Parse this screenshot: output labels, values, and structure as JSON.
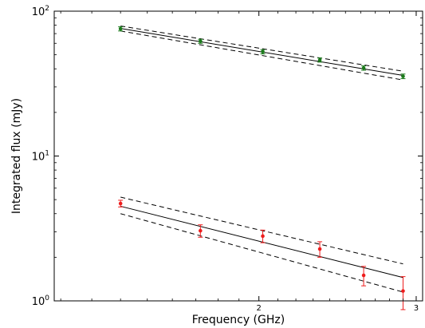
{
  "chart_data": {
    "type": "scatter",
    "title": "",
    "xlabel": "Frequency (GHz)",
    "ylabel": "Integrated flux (mJy)",
    "xscale": "log",
    "yscale": "log",
    "xlim": [
      1.18,
      3.05
    ],
    "ylim": [
      1,
      100
    ],
    "x_ticks": [
      {
        "value": 2,
        "label": "2"
      },
      {
        "value": 3,
        "label": "3"
      }
    ],
    "y_ticks": [
      {
        "value": 1,
        "base": "10",
        "exp": "0"
      },
      {
        "value": 10,
        "base": "10",
        "exp": "1"
      },
      {
        "value": 100,
        "base": "10",
        "exp": "2"
      }
    ],
    "grid": false,
    "series": [
      {
        "color": "#1a7a1a",
        "x": [
          1.4,
          1.72,
          2.02,
          2.34,
          2.62,
          2.9
        ],
        "y": [
          75.5,
          62.0,
          52.5,
          46.0,
          40.5,
          35.5
        ],
        "err": [
          2.5,
          2.0,
          1.8,
          1.5,
          1.4,
          1.3
        ],
        "fit": {
          "x": [
            1.4,
            2.9
          ],
          "y": [
            76.0,
            36.0
          ]
        },
        "fit_upper": {
          "x": [
            1.4,
            2.9
          ],
          "y": [
            79.0,
            38.5
          ]
        },
        "fit_lower": {
          "x": [
            1.4,
            2.9
          ],
          "y": [
            73.0,
            33.5
          ]
        }
      },
      {
        "color": "#ee1c1c",
        "x": [
          1.4,
          1.72,
          2.02,
          2.34,
          2.62,
          2.9
        ],
        "y": [
          4.7,
          3.05,
          2.8,
          2.28,
          1.5,
          1.17
        ],
        "err": [
          0.25,
          0.3,
          0.28,
          0.28,
          0.23,
          0.3
        ],
        "fit": {
          "x": [
            1.4,
            2.9
          ],
          "y": [
            4.5,
            1.45
          ]
        },
        "fit_upper": {
          "x": [
            1.4,
            2.9
          ],
          "y": [
            5.2,
            1.8
          ]
        },
        "fit_lower": {
          "x": [
            1.4,
            2.9
          ],
          "y": [
            4.0,
            1.15
          ]
        }
      }
    ]
  }
}
